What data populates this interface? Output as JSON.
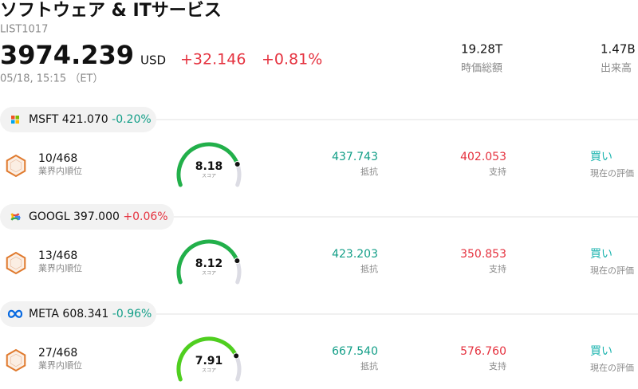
{
  "header": {
    "title": "ソフトウェア & ITサービス",
    "code": "LIST1017",
    "price": "3974.239",
    "currency": "USD",
    "change": "+32.146",
    "change_percent": "+0.81%",
    "timestamp": "05/18, 15:15 （ET）",
    "stats": [
      {
        "value": "19.28T",
        "label": "時価総額"
      },
      {
        "value": "1.47B",
        "label": "出来高"
      }
    ]
  },
  "stocks": [
    {
      "ticker": "MSFT",
      "price": "421.070",
      "change_percent": "-0.20%",
      "rank": "10/468",
      "rank_label": "業界内順位",
      "score": 8.18,
      "score_label": "スコア",
      "resistance": "437.743",
      "resistance_label": "抵抗",
      "support": "402.053",
      "support_label": "支持",
      "rating": "買い",
      "rating_label": "現在の評価"
    },
    {
      "ticker": "GOOGL",
      "price": "397.000",
      "change_percent": "+0.06%",
      "rank": "13/468",
      "rank_label": "業界内順位",
      "score": 8.12,
      "score_label": "スコア",
      "resistance": "423.203",
      "resistance_label": "抵抗",
      "support": "350.853",
      "support_label": "支持",
      "rating": "買い",
      "rating_label": "現在の評価"
    },
    {
      "ticker": "META",
      "price": "608.341",
      "change_percent": "-0.96%",
      "rank": "27/468",
      "rank_label": "業界内順位",
      "score": 7.91,
      "score_label": "スコア",
      "resistance": "667.540",
      "resistance_label": "抵抗",
      "support": "576.760",
      "support_label": "支持",
      "rating": "買い",
      "rating_label": "現在の評価"
    }
  ]
}
